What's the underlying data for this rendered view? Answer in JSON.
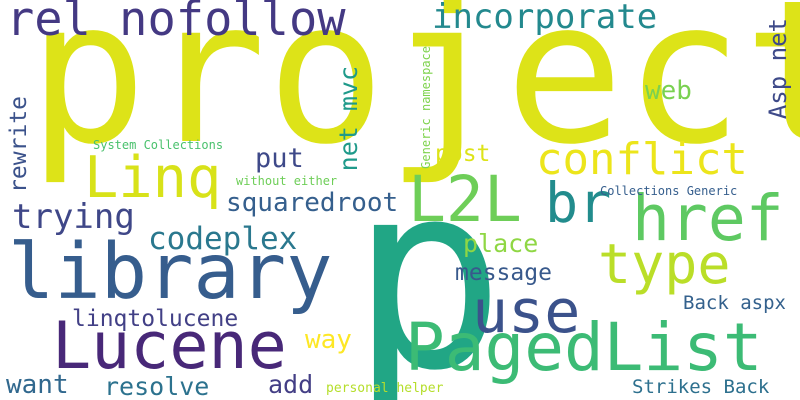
{
  "words": [
    {
      "text": "project",
      "color": "#dde318"
    },
    {
      "text": "p",
      "color": "#21a685"
    },
    {
      "text": "rel nofollow",
      "color": "#443983"
    },
    {
      "text": "incorporate",
      "color": "#23898e"
    },
    {
      "text": "conflict",
      "color": "#ece51b"
    },
    {
      "text": "Linq",
      "color": "#d8e219"
    },
    {
      "text": "L2L",
      "color": "#6ece58"
    },
    {
      "text": "br",
      "color": "#228c8d"
    },
    {
      "text": "href",
      "color": "#5ec962"
    },
    {
      "text": "library",
      "color": "#365d8d"
    },
    {
      "text": "type",
      "color": "#bade28"
    },
    {
      "text": "use",
      "color": "#3b528b"
    },
    {
      "text": "Lucene",
      "color": "#482878"
    },
    {
      "text": "PagedList",
      "color": "#3cbb75"
    },
    {
      "text": "trying",
      "color": "#3f4788"
    },
    {
      "text": "codeplex",
      "color": "#2a788e"
    },
    {
      "text": "squaredroot",
      "color": "#355f8d"
    },
    {
      "text": "put",
      "color": "#3e4989"
    },
    {
      "text": "post",
      "color": "#dde318"
    },
    {
      "text": "web",
      "color": "#7ad151"
    },
    {
      "text": "place",
      "color": "#8fd744"
    },
    {
      "text": "message",
      "color": "#38598c"
    },
    {
      "text": "linqtolucene",
      "color": "#424086"
    },
    {
      "text": "way",
      "color": "#fde725"
    },
    {
      "text": "want",
      "color": "#31688e"
    },
    {
      "text": "resolve",
      "color": "#2c728e"
    },
    {
      "text": "add",
      "color": "#433e85"
    },
    {
      "text": "Back aspx",
      "color": "#34618d"
    },
    {
      "text": "Strikes Back",
      "color": "#2d708e"
    },
    {
      "text": "System Collections",
      "color": "#4ac16d"
    },
    {
      "text": "without either",
      "color": "#6ece58"
    },
    {
      "text": "Collections Generic",
      "color": "#355e8d"
    },
    {
      "text": "personal helper",
      "color": "#b5de2b"
    },
    {
      "text": "net mvc",
      "color": "#1f9a8a"
    },
    {
      "text": "rewrite",
      "color": "#3b528b"
    },
    {
      "text": "Asp net",
      "color": "#3e4a89"
    },
    {
      "text": "Generic namespace",
      "color": "#7fd34e"
    }
  ]
}
